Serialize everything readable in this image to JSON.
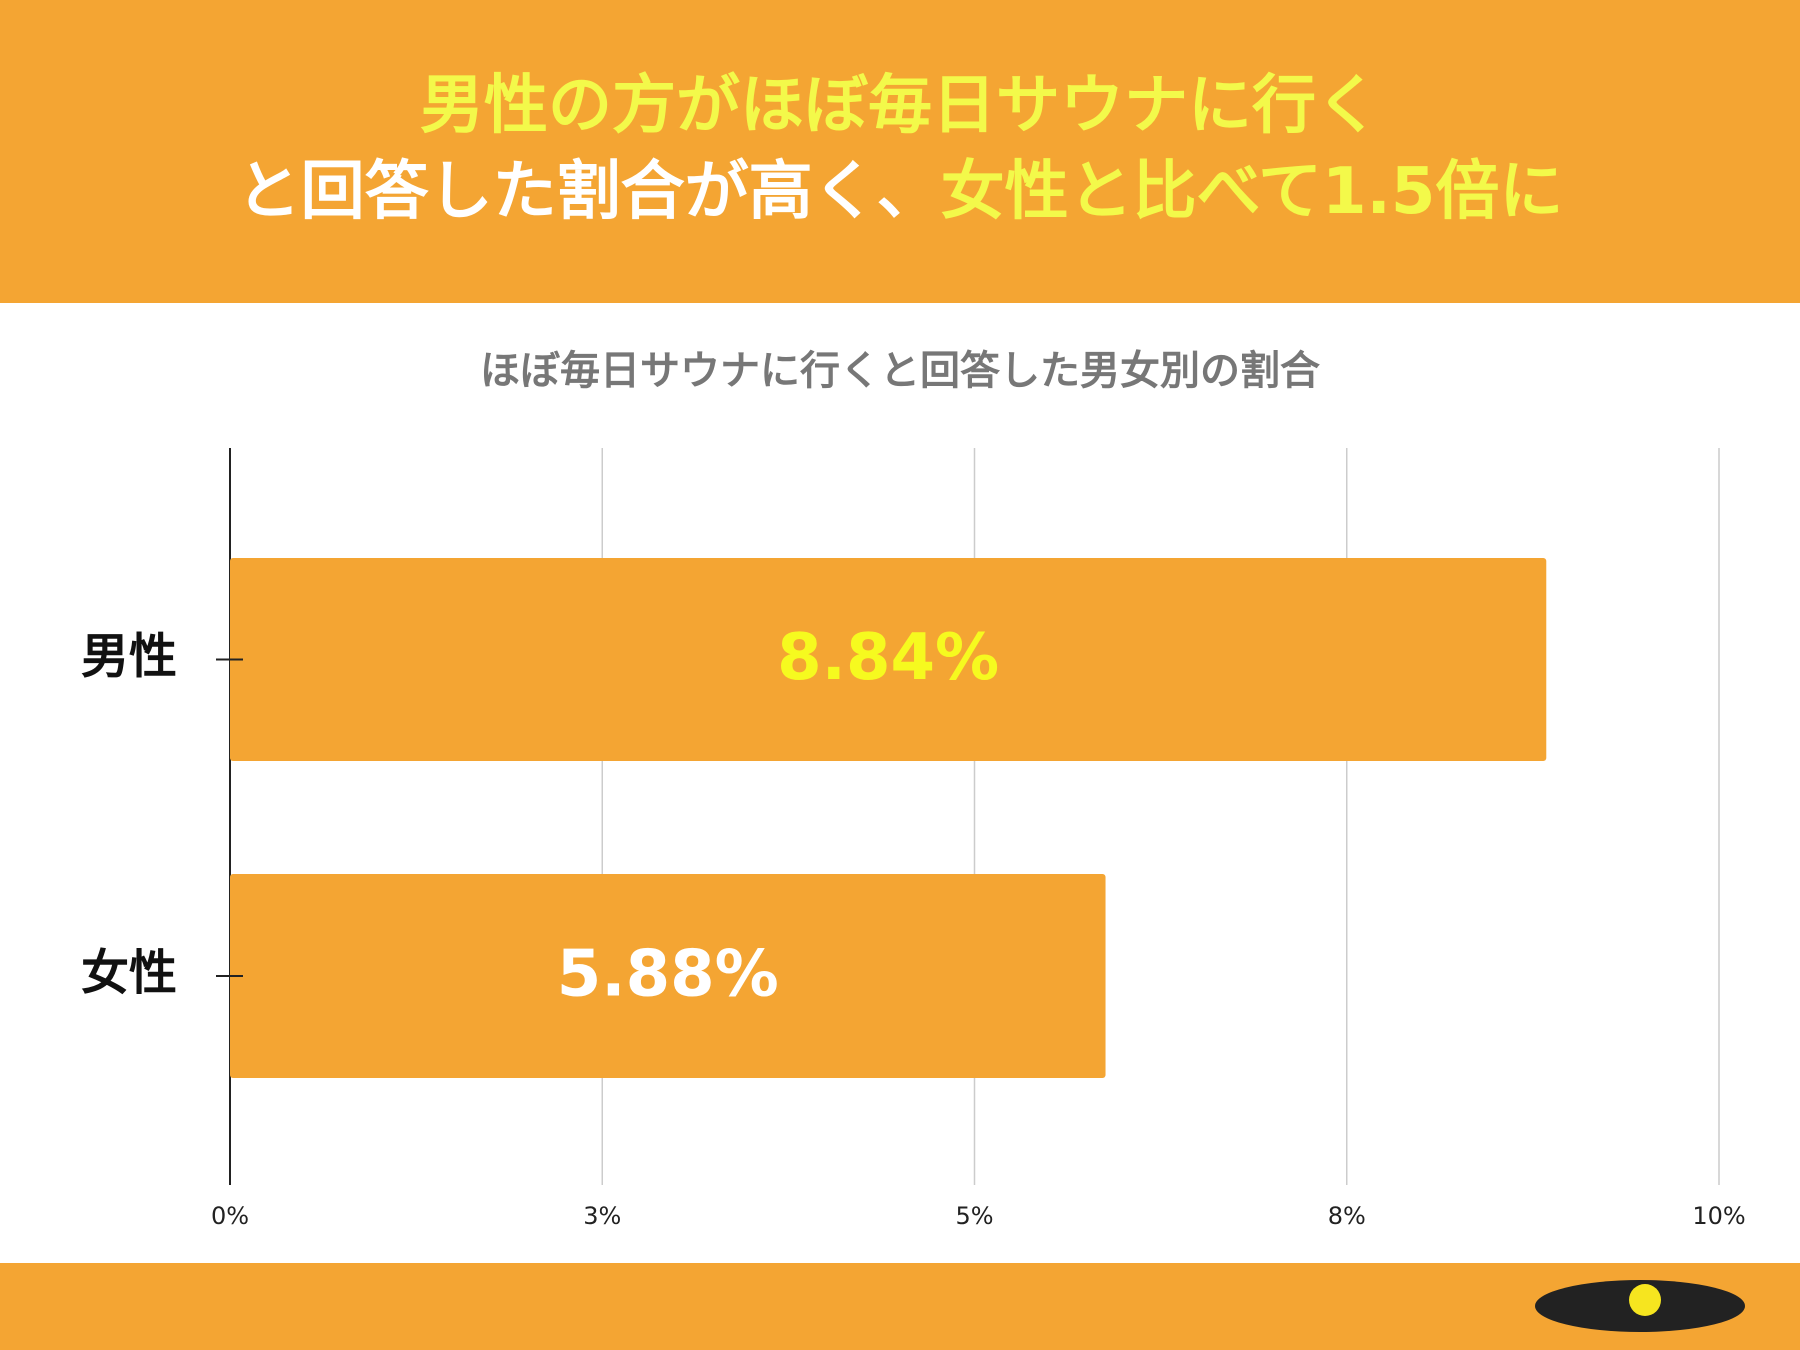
{
  "header": {
    "background": "#f4a533",
    "lines": [
      [
        {
          "text": "男性の方がほぼ毎日サウナに行く",
          "color": "#f3f94a"
        }
      ],
      [
        {
          "text": "と回答した割合が高く、",
          "color": "#ffffff"
        },
        {
          "text": "女性と比べて1.5倍に",
          "color": "#f3f94a"
        }
      ]
    ]
  },
  "chart_data": {
    "type": "bar",
    "orientation": "horizontal",
    "title": "ほぼ毎日サウナに行くと回答した男女別の割合",
    "categories": [
      "男性",
      "女性"
    ],
    "values": [
      8.84,
      5.88
    ],
    "value_labels": [
      "8.84%",
      "5.88%"
    ],
    "value_label_colors": [
      "#f6fa1f",
      "#ffffff"
    ],
    "color": "#f4a533",
    "xlim": [
      0,
      10
    ],
    "xticks": [
      {
        "value": 0,
        "label": "0%"
      },
      {
        "value": 2.5,
        "label": "3%"
      },
      {
        "value": 5,
        "label": "5%"
      },
      {
        "value": 7.5,
        "label": "8%"
      },
      {
        "value": 10,
        "label": "10%"
      }
    ],
    "grid": true
  }
}
